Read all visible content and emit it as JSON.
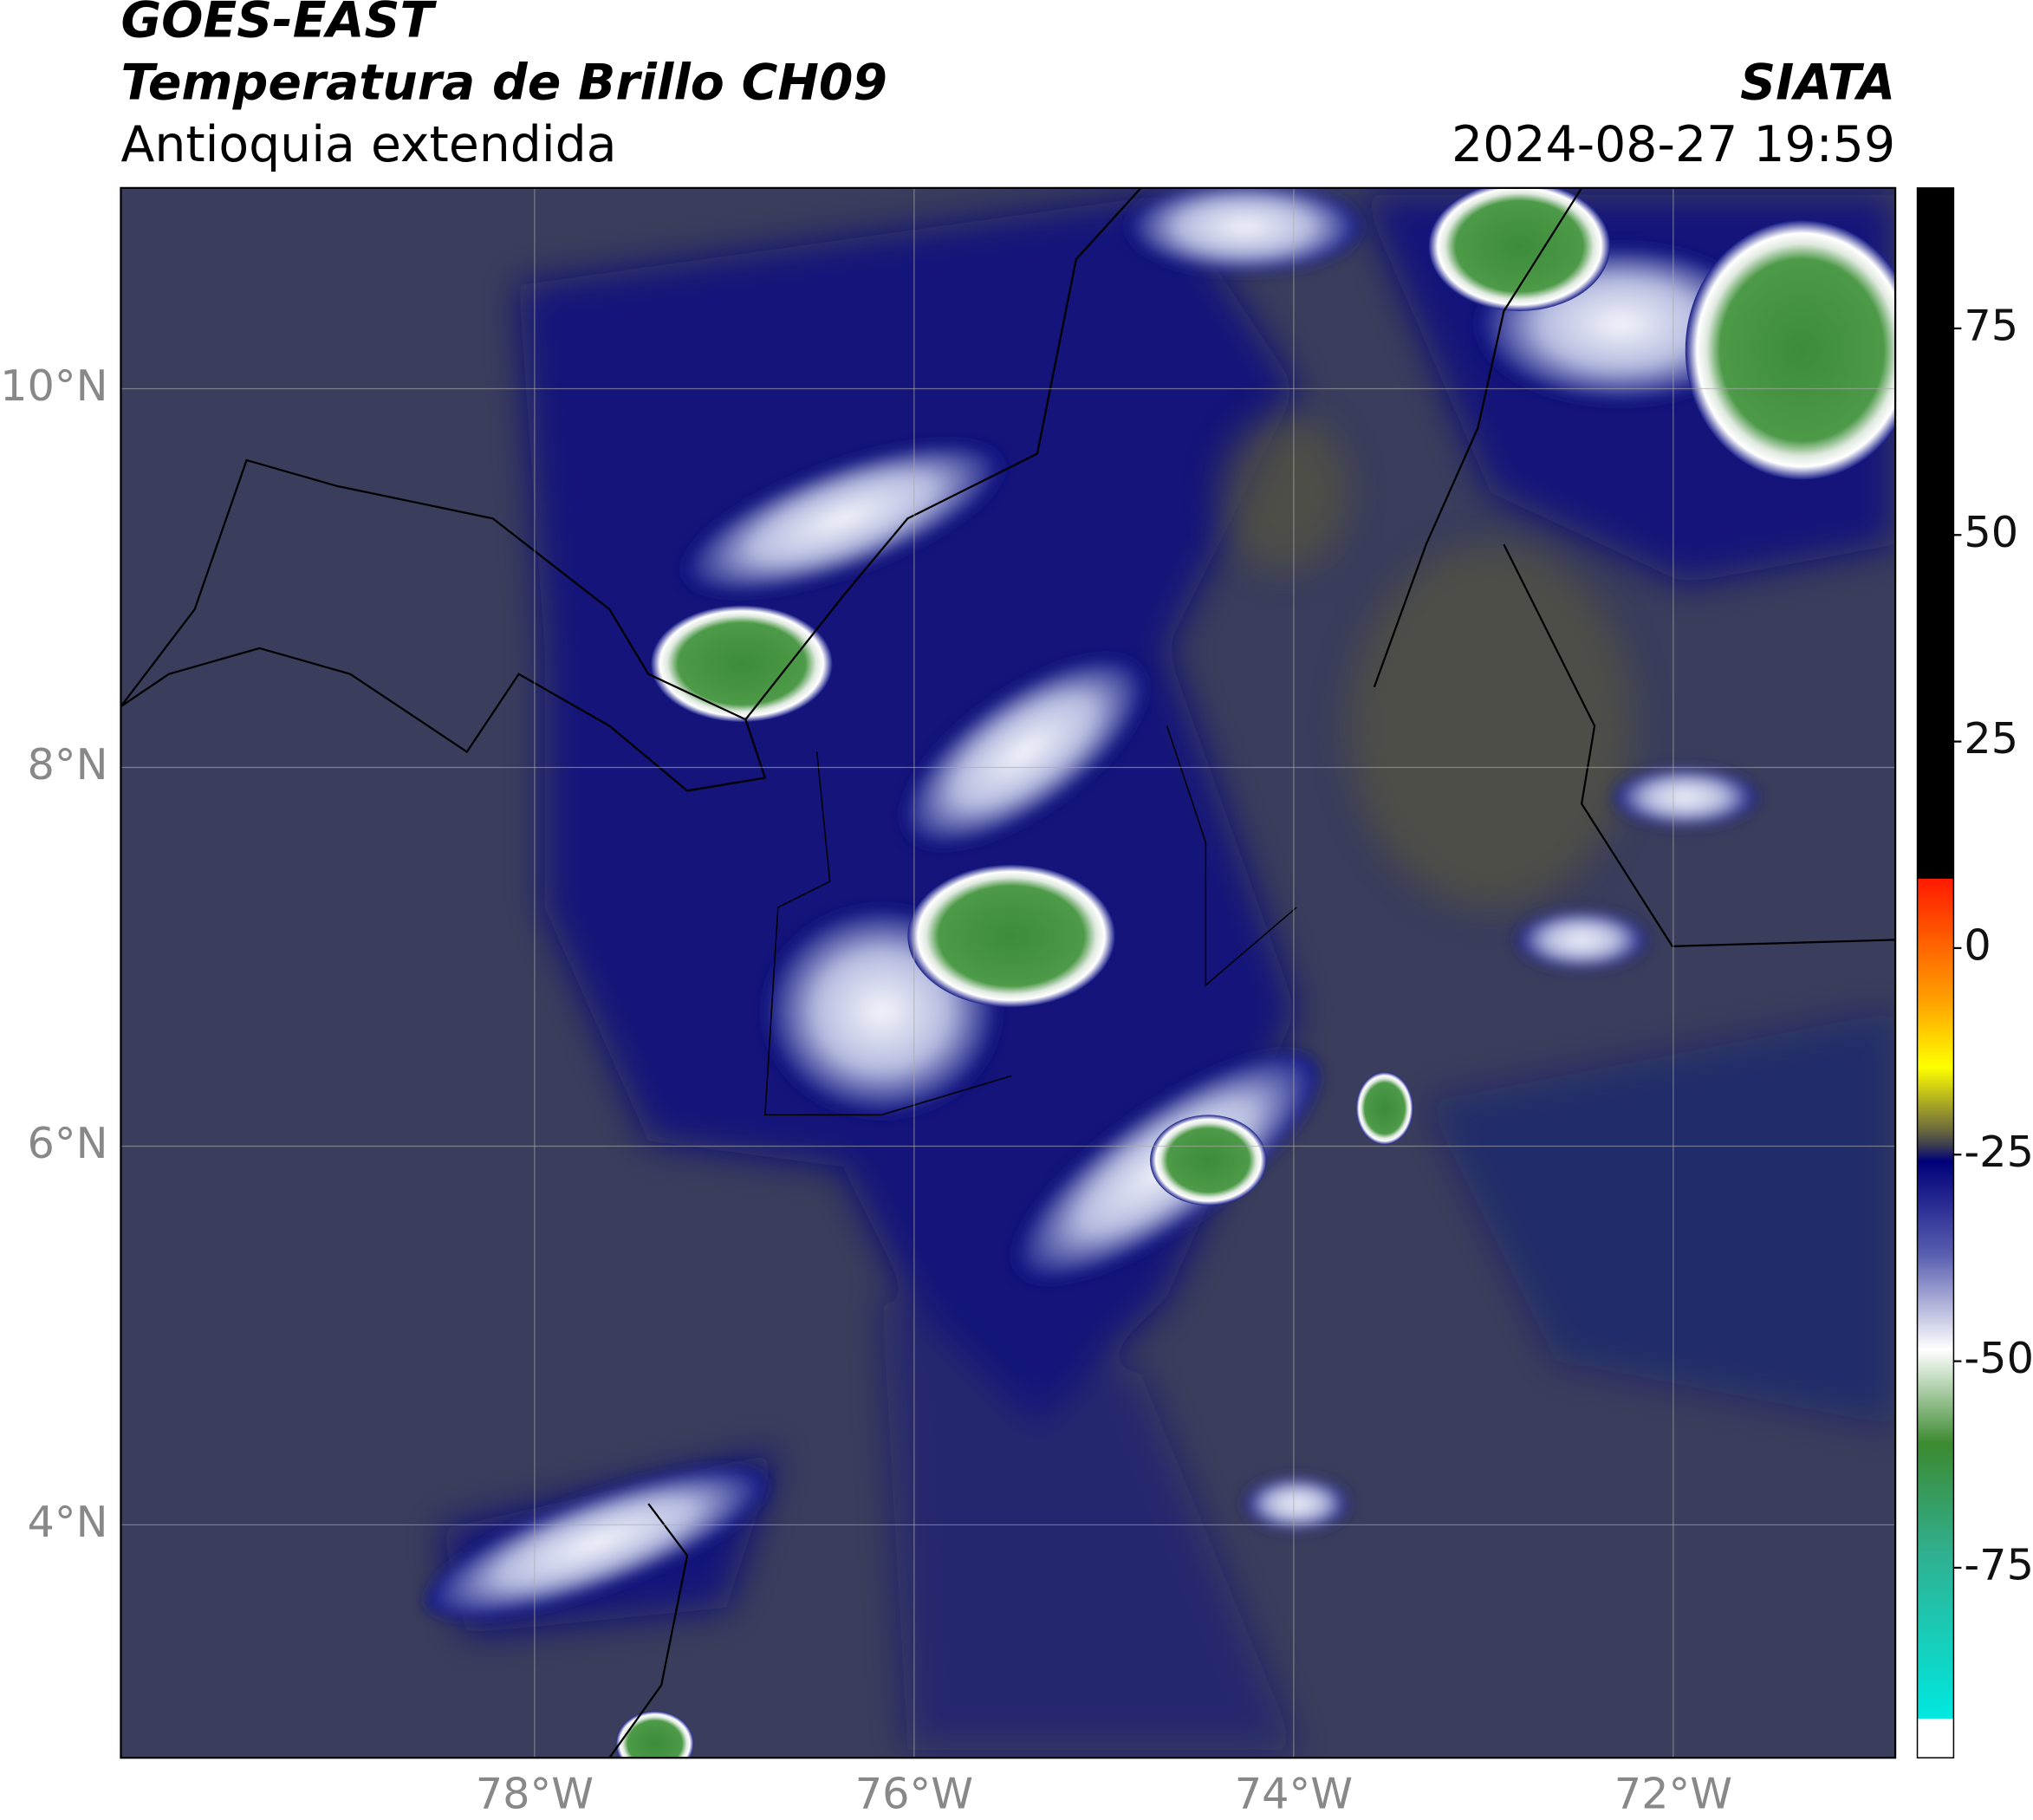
{
  "header": {
    "title": "GOES-EAST",
    "subtitle": "Temperatura de Brillo CH09",
    "region": "Antioquia extendida",
    "source": "SIATA",
    "datetime": "2024-08-27 19:59"
  },
  "map": {
    "xlim": [
      -80.18,
      -70.83
    ],
    "ylim": [
      2.77,
      11.06
    ],
    "xticks": [
      {
        "value": -78,
        "label": "78°W"
      },
      {
        "value": -76,
        "label": "76°W"
      },
      {
        "value": -74,
        "label": "74°W"
      },
      {
        "value": -72,
        "label": "72°W"
      }
    ],
    "yticks": [
      {
        "value": 4,
        "label": "4°N"
      },
      {
        "value": 6,
        "label": "6°N"
      },
      {
        "value": 8,
        "label": "8°N"
      },
      {
        "value": 10,
        "label": "10°N"
      }
    ]
  },
  "colorbar": {
    "lim": [
      -98,
      92
    ],
    "ticks": [
      -75,
      -50,
      -25,
      0,
      25,
      50,
      75
    ]
  }
}
